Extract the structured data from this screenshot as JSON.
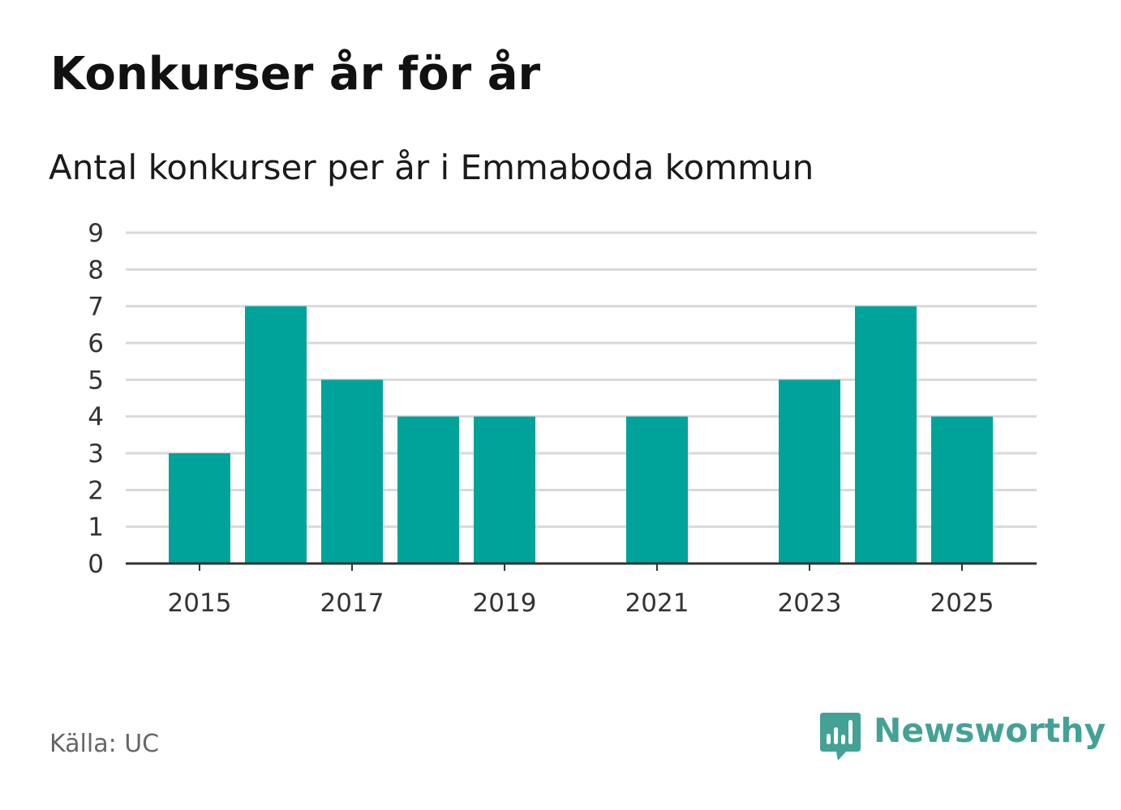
{
  "title": "Konkurser år för år",
  "subtitle": "Antal konkurser per år i Emmaboda kommun",
  "source": "Källa: UC",
  "brand": {
    "name": "Newsworthy",
    "icon": "newsworthy-logo-icon",
    "color": "#44a196"
  },
  "colors": {
    "bar": "#00a39a",
    "grid": "#d9d9d9",
    "axis": "#333333",
    "tick_text": "#333333"
  },
  "chart_data": {
    "type": "bar",
    "categories": [
      "2015",
      "2016",
      "2017",
      "2018",
      "2019",
      "2020",
      "2021",
      "2022",
      "2023",
      "2024",
      "2025"
    ],
    "values": [
      3,
      7,
      5,
      4,
      4,
      0,
      4,
      0,
      5,
      7,
      4
    ],
    "x_tick_labels": [
      "2015",
      "2017",
      "2019",
      "2021",
      "2023",
      "2025"
    ],
    "y_ticks": [
      0,
      1,
      2,
      3,
      4,
      5,
      6,
      7,
      8,
      9
    ],
    "ylim": [
      0,
      9
    ],
    "grid": true,
    "legend": "none",
    "xlabel": "",
    "ylabel": ""
  }
}
